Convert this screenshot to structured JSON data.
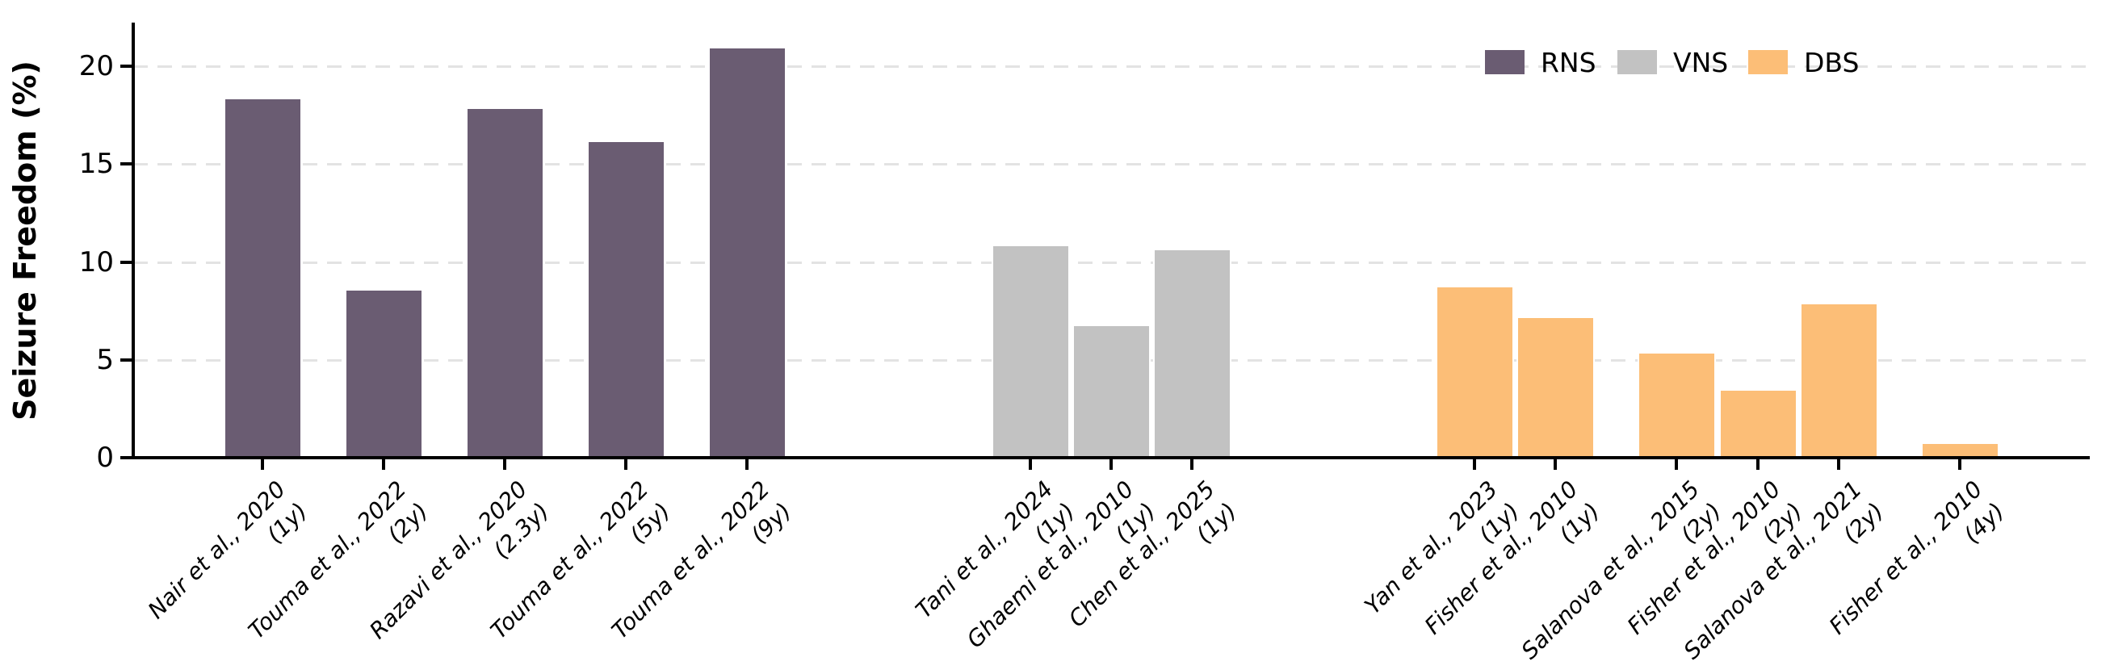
{
  "figure": {
    "background_color": "#ffffff",
    "text_color": "#000000"
  },
  "chart_data": {
    "type": "bar",
    "title": "",
    "xlabel": "",
    "ylabel": "Seizure Freedom (%)",
    "ylim": [
      0,
      22.2
    ],
    "yticks": [
      0,
      5,
      10,
      15,
      20
    ],
    "grid": "horizontal dashed gridlines at 5, 10, 15, 20",
    "legend": {
      "position": "upper-right",
      "frame": false,
      "entries": [
        {
          "label": "RNS",
          "color": "#6a5c72"
        },
        {
          "label": "VNS",
          "color": "#c2c2c2"
        },
        {
          "label": "DBS",
          "color": "#fcbe77"
        }
      ]
    },
    "bars": [
      {
        "study": "Nair et al., 2020",
        "followup": "(1y)",
        "group": "RNS",
        "value": 18.4
      },
      {
        "study": "Touma et al., 2022",
        "followup": "(2y)",
        "group": "RNS",
        "value": 8.6
      },
      {
        "study": "Razavi et al., 2020",
        "followup": "(2.3y)",
        "group": "RNS",
        "value": 17.9
      },
      {
        "study": "Touma et al., 2022",
        "followup": "(5y)",
        "group": "RNS",
        "value": 16.2
      },
      {
        "study": "Touma et al., 2022",
        "followup": "(9y)",
        "group": "RNS",
        "value": 21.0
      },
      {
        "study": "Tani et al., 2024",
        "followup": "(1y)",
        "group": "VNS",
        "value": 10.9
      },
      {
        "study": "Ghaemi et al., 2010",
        "followup": "(1y)",
        "group": "VNS",
        "value": 6.8
      },
      {
        "study": "Chen et al., 2025",
        "followup": "(1y)",
        "group": "VNS",
        "value": 10.7
      },
      {
        "study": "Yan et al., 2023",
        "followup": "(1y)",
        "group": "DBS",
        "value": 8.8
      },
      {
        "study": "Fisher et al., 2010",
        "followup": "(1y)",
        "group": "DBS",
        "value": 7.2
      },
      {
        "study": "Salanova et al., 2015",
        "followup": "(2y)",
        "group": "DBS",
        "value": 5.4
      },
      {
        "study": "Fisher et al., 2010",
        "followup": "(2y)",
        "group": "DBS",
        "value": 3.5
      },
      {
        "study": "Salanova et al., 2021",
        "followup": "(2y)",
        "group": "DBS",
        "value": 7.9
      },
      {
        "study": "Fisher et al., 2010",
        "followup": "(4y)",
        "group": "DBS",
        "value": 0.8
      }
    ]
  }
}
